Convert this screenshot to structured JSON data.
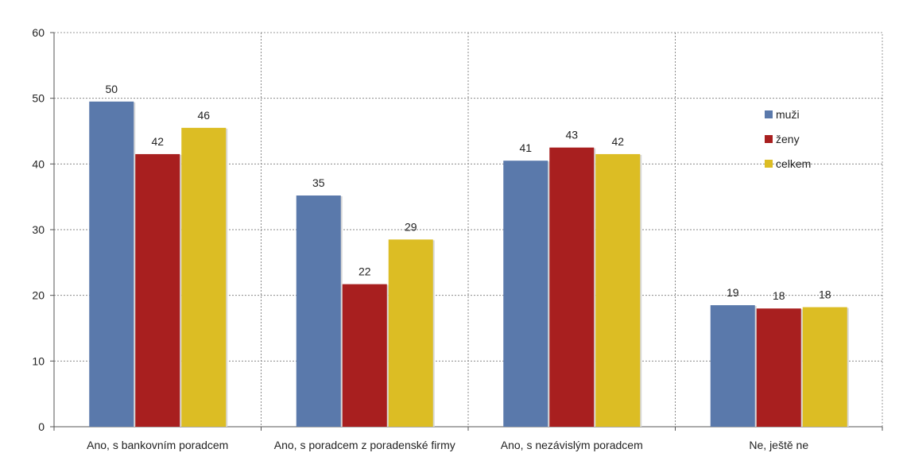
{
  "chart_data": {
    "type": "bar",
    "title": "",
    "xlabel": "",
    "ylabel": "",
    "ylim": [
      0,
      60
    ],
    "yticks": [
      0,
      10,
      20,
      30,
      40,
      50,
      60
    ],
    "grid": true,
    "legend_position": "right",
    "categories": [
      "Ano, s bankovním poradcem",
      "Ano, s poradcem z poradenské firmy",
      "Ano, s nezávislým poradcem",
      "Ne, ještě ne"
    ],
    "series": [
      {
        "name": "muži",
        "color": "#5a79ab",
        "values": [
          49.5,
          35.2,
          40.5,
          18.5
        ],
        "labels": [
          "50",
          "35",
          "41",
          "19"
        ]
      },
      {
        "name": "ženy",
        "color": "#a81f1f",
        "values": [
          41.5,
          21.7,
          42.5,
          18.0
        ],
        "labels": [
          "42",
          "22",
          "43",
          "18"
        ]
      },
      {
        "name": "celkem",
        "color": "#dcbd24",
        "values": [
          45.5,
          28.5,
          41.5,
          18.2
        ],
        "labels": [
          "46",
          "29",
          "42",
          "18"
        ]
      }
    ]
  }
}
